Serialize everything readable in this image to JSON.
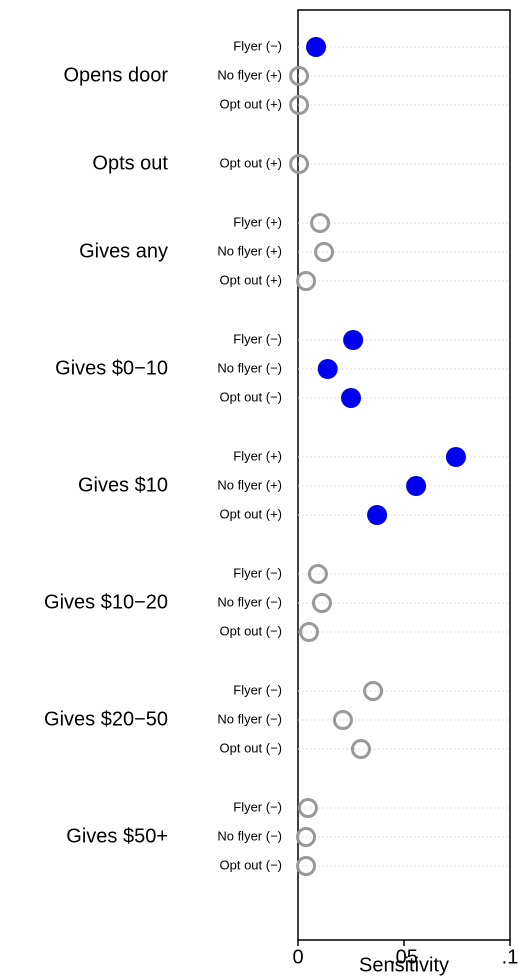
{
  "chart_data": {
    "type": "dotplot",
    "xlabel": "Sensitivity",
    "xlim": [
      0,
      0.1
    ],
    "xticks": [
      0,
      {
        "value": 0.05,
        "label": ".05"
      },
      {
        "value": 0.1,
        "label": ".1"
      }
    ],
    "filled_color": "#0000ee",
    "hollow_color": "#999999",
    "groups": [
      {
        "name": "Opens door",
        "rows": [
          {
            "label": "Flyer (−)",
            "value": 0.0085,
            "filled": true
          },
          {
            "label": "No flyer (+)",
            "value": 0.0005,
            "filled": false
          },
          {
            "label": "Opt out (+)",
            "value": 0.0005,
            "filled": false
          }
        ]
      },
      {
        "name": "Opts out",
        "rows": [
          {
            "label": "Opt out (+)",
            "value": 0.0005,
            "filled": false
          }
        ]
      },
      {
        "name": "Gives any",
        "rows": [
          {
            "label": "Flyer (+)",
            "value": 0.0104,
            "filled": false
          },
          {
            "label": "No flyer (+)",
            "value": 0.0123,
            "filled": false
          },
          {
            "label": "Opt out (+)",
            "value": 0.0038,
            "filled": false
          }
        ]
      },
      {
        "name": "Gives $0−10",
        "rows": [
          {
            "label": "Flyer (−)",
            "value": 0.026,
            "filled": true
          },
          {
            "label": "No flyer (−)",
            "value": 0.014,
            "filled": true
          },
          {
            "label": "Opt out (−)",
            "value": 0.025,
            "filled": true
          }
        ]
      },
      {
        "name": "Gives $10",
        "rows": [
          {
            "label": "Flyer (+)",
            "value": 0.0745,
            "filled": true
          },
          {
            "label": "No flyer (+)",
            "value": 0.0557,
            "filled": true
          },
          {
            "label": "Opt out (+)",
            "value": 0.0373,
            "filled": true
          }
        ]
      },
      {
        "name": "Gives $10−20",
        "rows": [
          {
            "label": "Flyer (−)",
            "value": 0.0094,
            "filled": false
          },
          {
            "label": "No flyer (−)",
            "value": 0.0113,
            "filled": false
          },
          {
            "label": "Opt out (−)",
            "value": 0.0052,
            "filled": false
          }
        ]
      },
      {
        "name": "Gives $20−50",
        "rows": [
          {
            "label": "Flyer (−)",
            "value": 0.0354,
            "filled": false
          },
          {
            "label": "No flyer (−)",
            "value": 0.0212,
            "filled": false
          },
          {
            "label": "Opt out (−)",
            "value": 0.0297,
            "filled": false
          }
        ]
      },
      {
        "name": "Gives $50+",
        "rows": [
          {
            "label": "Flyer (−)",
            "value": 0.0047,
            "filled": false
          },
          {
            "label": "No flyer (−)",
            "value": 0.0038,
            "filled": false
          },
          {
            "label": "Opt out (−)",
            "value": 0.0038,
            "filled": false
          }
        ]
      }
    ]
  }
}
